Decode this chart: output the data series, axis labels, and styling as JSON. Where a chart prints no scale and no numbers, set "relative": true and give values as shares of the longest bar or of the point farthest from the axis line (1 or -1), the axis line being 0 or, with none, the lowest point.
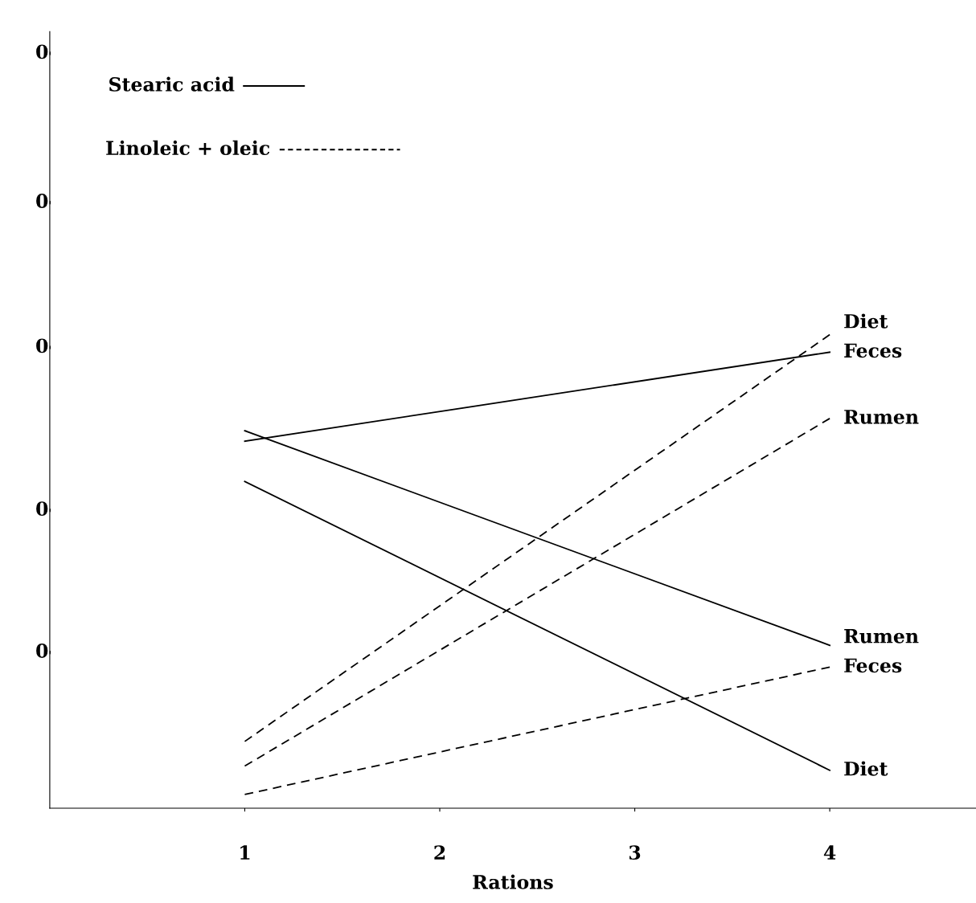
{
  "chart_data": {
    "type": "line",
    "relative": true,
    "xlabel": "Rations",
    "x": [
      1,
      4
    ],
    "xlim": [
      0,
      4.75
    ],
    "xticks": [
      1,
      2,
      3,
      4
    ],
    "grid": false,
    "marker": "none",
    "annotations": [
      "Stearic acid",
      "Linoleic + oleic",
      "0",
      "0",
      "0",
      "0",
      "0"
    ],
    "series": [
      {
        "name": "Feces",
        "color": "#000000",
        "line_style": "solid",
        "values": [
          0.775,
          0.963
        ]
      },
      {
        "name": "Rumen",
        "color": "#000000",
        "line_style": "solid",
        "values": [
          0.797,
          0.344
        ]
      },
      {
        "name": "Diet",
        "color": "#000000",
        "line_style": "solid",
        "values": [
          0.69,
          0.08
        ]
      },
      {
        "name": "Diet",
        "color": "#000000",
        "line_style": "dashed",
        "values": [
          0.141,
          1.0
        ]
      },
      {
        "name": "Rumen",
        "color": "#000000",
        "line_style": "dashed",
        "values": [
          0.089,
          0.823
        ]
      },
      {
        "name": "Feces",
        "color": "#000000",
        "line_style": "dashed",
        "values": [
          0.029,
          0.298
        ]
      }
    ]
  }
}
